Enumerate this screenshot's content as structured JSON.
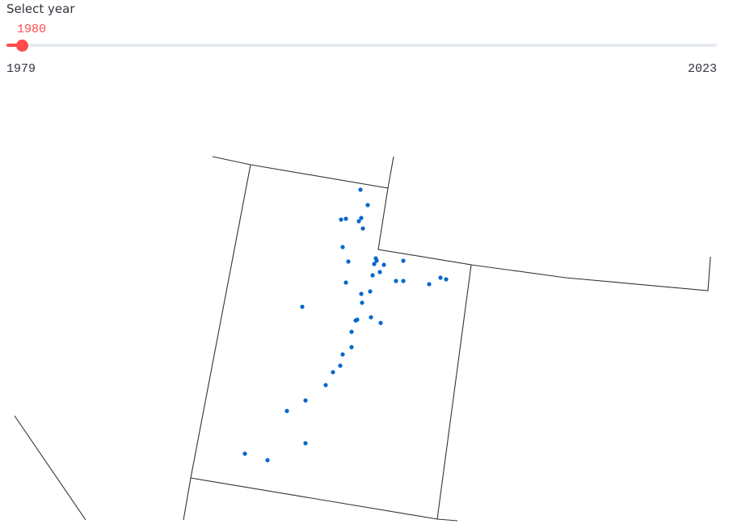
{
  "slider": {
    "label": "Select year",
    "value": "1980",
    "min": "1979",
    "max": "2023",
    "value_fraction": 0.0227,
    "accent_color": "#ff4b4b",
    "track_color": "#e6eaf1"
  },
  "map": {
    "point_color": "#0068c9",
    "border_color": "#333333"
  }
}
